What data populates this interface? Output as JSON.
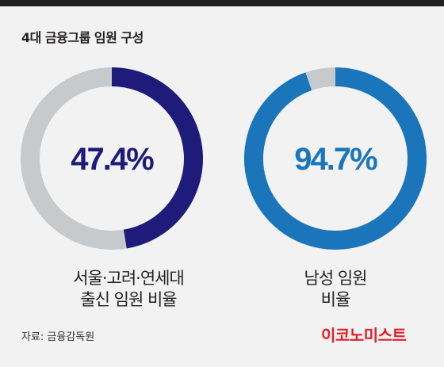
{
  "title": "4대 금융그룹 임원 구성",
  "chart_data": [
    {
      "type": "pie",
      "donut": true,
      "value_label": "47.4%",
      "slices": [
        {
          "name": "",
          "value": 47.4,
          "color": "#1e1b7a"
        },
        {
          "name": "",
          "value": 52.6,
          "color": "#c6cacd"
        }
      ],
      "label_lines": [
        "서울·고려·연세대",
        "출신 임원 비율"
      ]
    },
    {
      "type": "pie",
      "donut": true,
      "value_label": "94.7%",
      "slices": [
        {
          "name": "",
          "value": 94.7,
          "color": "#1b75bb"
        },
        {
          "name": "",
          "value": 5.3,
          "color": "#c6cacd"
        }
      ],
      "label_lines": [
        "남성 임원",
        "비율"
      ]
    }
  ],
  "source": "자료: 금융감독원",
  "logo": "이코노미스트",
  "colors": {
    "background": "#f2f2f2",
    "top_bar": "#231f20",
    "text": "#231f20",
    "remainder": "#c6cacd",
    "logo": "#e01f26"
  }
}
